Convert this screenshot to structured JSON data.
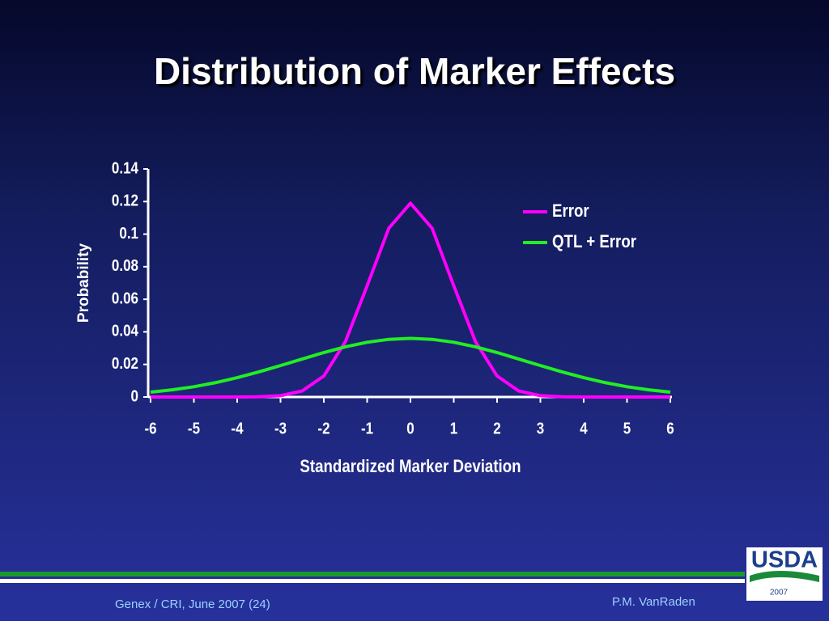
{
  "chart_data": {
    "type": "line",
    "title": "Distribution of Marker Effects",
    "x_label": "Standardized Marker Deviation",
    "y_label": "Probability",
    "x": [
      -6,
      -5.5,
      -5,
      -4.5,
      -4,
      -3.5,
      -3,
      -2.5,
      -2,
      -1.5,
      -1,
      -0.5,
      0,
      0.5,
      1,
      1.5,
      2,
      2.5,
      3,
      3.5,
      4,
      4.5,
      5,
      5.5,
      6
    ],
    "series": [
      {
        "name": "Error",
        "color": "#ff00ff",
        "values": [
          0,
          0,
          0,
          0,
          0,
          0.0001,
          0.0008,
          0.0037,
          0.0129,
          0.0341,
          0.0683,
          0.1036,
          0.119,
          0.1036,
          0.0683,
          0.0341,
          0.0129,
          0.0037,
          0.0008,
          0.0001,
          0,
          0,
          0,
          0,
          0
        ]
      },
      {
        "name": "QTL + Error",
        "color": "#22ee22",
        "values": [
          0.003,
          0.0044,
          0.0063,
          0.0088,
          0.0119,
          0.0154,
          0.0193,
          0.0233,
          0.0273,
          0.0308,
          0.0336,
          0.0354,
          0.036,
          0.0354,
          0.0336,
          0.0308,
          0.0273,
          0.0233,
          0.0193,
          0.0154,
          0.0119,
          0.0088,
          0.0063,
          0.0044,
          0.003
        ]
      }
    ],
    "xlim": [
      -6,
      6
    ],
    "xticks": [
      -6,
      -5,
      -4,
      -3,
      -2,
      -1,
      0,
      1,
      2,
      3,
      4,
      5,
      6
    ],
    "ylim": [
      0,
      0.14
    ],
    "yticks": [
      0,
      0.02,
      0.04,
      0.06,
      0.08,
      0.1,
      0.12,
      0.14
    ],
    "legend": "upper right",
    "grid": false
  },
  "footer": {
    "source": "Genex / CRI, June 2007 (24)",
    "author": "P.M. VanRaden",
    "logo": "USDA",
    "logo_year": "2007"
  }
}
